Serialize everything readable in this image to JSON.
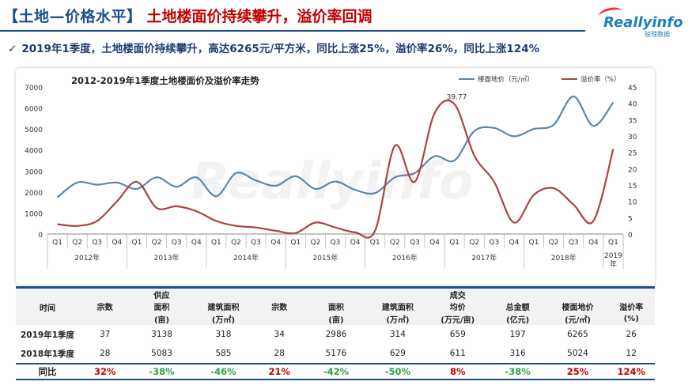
{
  "header": {
    "title_left": "【土地—价格水平】",
    "title_right": "土地楼面价持续攀升，溢价率回调",
    "logo_main": "Reallyinfo",
    "logo_sub": "锐理数据"
  },
  "summary": "2019年1季度，土地楼面价持续攀升，高达6265元/平方米，同比上涨25%，溢价率26%，同比上涨124%",
  "chart_data": {
    "type": "line",
    "title": "2012-2019年1季度土地楼面价及溢价率走势",
    "quarter_labels": [
      "Q1",
      "Q2",
      "Q3",
      "Q4",
      "Q1",
      "Q2",
      "Q3",
      "Q4",
      "Q1",
      "Q2",
      "Q3",
      "Q4",
      "Q1",
      "Q2",
      "Q3",
      "Q4",
      "Q1",
      "Q2",
      "Q3",
      "Q4",
      "Q1",
      "Q2",
      "Q3",
      "Q4",
      "Q1",
      "Q2",
      "Q3",
      "Q4",
      "Q1"
    ],
    "years": [
      {
        "label": "2012年",
        "count": 4
      },
      {
        "label": "2013年",
        "count": 4
      },
      {
        "label": "2014年",
        "count": 4
      },
      {
        "label": "2015年",
        "count": 4
      },
      {
        "label": "2016年",
        "count": 4
      },
      {
        "label": "2017年",
        "count": 4
      },
      {
        "label": "2018年",
        "count": 4
      },
      {
        "label": "2019年",
        "count": 1
      }
    ],
    "left_axis": {
      "ylim": [
        0,
        7000
      ],
      "ticks": [
        0,
        1000,
        2000,
        3000,
        4000,
        5000,
        6000,
        7000
      ]
    },
    "right_axis": {
      "ylim": [
        0,
        45
      ],
      "ticks": [
        0,
        5,
        10,
        15,
        20,
        25,
        30,
        35,
        40,
        45
      ]
    },
    "series": [
      {
        "name": "楼面地价（元/㎡）",
        "axis": "left",
        "color": "#5b87a9",
        "values": [
          1750,
          2450,
          2350,
          2450,
          2150,
          2700,
          2250,
          2700,
          1800,
          2900,
          2550,
          2300,
          2750,
          2150,
          2500,
          2100,
          1950,
          2700,
          2900,
          3700,
          3500,
          4900,
          5050,
          4650,
          5000,
          5200,
          6550,
          5150,
          6265
        ]
      },
      {
        "name": "溢价率（%）",
        "axis": "right",
        "color": "#a94442",
        "values": [
          3,
          2.5,
          4,
          10,
          16,
          8,
          8.5,
          7,
          4,
          2.5,
          2,
          1,
          0.3,
          3.5,
          2,
          0.5,
          1,
          27,
          16,
          37,
          39.77,
          24,
          16,
          3.5,
          12,
          14,
          9,
          4,
          26
        ]
      }
    ],
    "annotation": {
      "text": "39.77"
    },
    "legend": "top-right",
    "grid": false
  },
  "table": {
    "time_header": "时间",
    "group_supply": "供应",
    "group_deal": "成交",
    "col_lines": [
      [
        "宗数",
        ""
      ],
      [
        "面积",
        "(亩)"
      ],
      [
        "建筑面积",
        "(万㎡)"
      ],
      [
        "宗数",
        ""
      ],
      [
        "面积",
        "(亩)"
      ],
      [
        "建筑面积",
        "(万㎡)"
      ],
      [
        "均价",
        "(万元/亩)"
      ],
      [
        "总金额",
        "(亿元)"
      ],
      [
        "楼面地价",
        "(元/㎡)"
      ],
      [
        "溢价率",
        "(%)"
      ]
    ],
    "rows": [
      {
        "label": "2019年1季度",
        "values": [
          "37",
          "3138",
          "318",
          "34",
          "2986",
          "314",
          "659",
          "197",
          "6265",
          "26"
        ]
      },
      {
        "label": "2018年1季度",
        "values": [
          "28",
          "5083",
          "585",
          "28",
          "5176",
          "629",
          "611",
          "316",
          "5024",
          "12"
        ]
      }
    ],
    "yoy": {
      "label": "同比",
      "values": [
        "32%",
        "-38%",
        "-46%",
        "21%",
        "-42%",
        "-50%",
        "8%",
        "-38%",
        "25%",
        "124%"
      ]
    }
  }
}
